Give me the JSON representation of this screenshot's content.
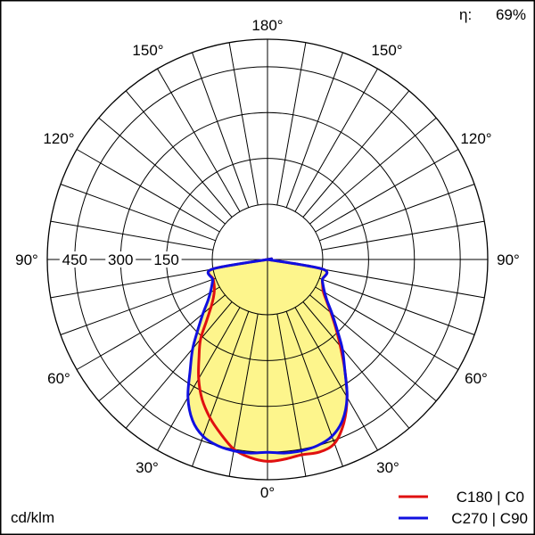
{
  "chart_data": {
    "type": "polar",
    "efficiency": {
      "symbol": "η:",
      "value": "69%"
    },
    "unit_label": "cd/klm",
    "radial_ticks": [
      150,
      300,
      450
    ],
    "radial_tick_labels": [
      "150",
      "300",
      "450"
    ],
    "rmax": 540,
    "angle_labels": {
      "0": "0°",
      "30": "30°",
      "60": "60°",
      "90": "90°",
      "120": "120°",
      "150": "150°",
      "180": "180°"
    },
    "colors": {
      "fill": "#fdf58c",
      "c0": "#e01010",
      "c90": "#1010e0"
    },
    "series": [
      {
        "name": "C180 | C0",
        "color": "#e01010",
        "angles": [
          0,
          5,
          10,
          15,
          20,
          25,
          30,
          35,
          40,
          45,
          50,
          55,
          60,
          65,
          70,
          80,
          90
        ],
        "left_values": [
          480,
          470,
          450,
          410,
          370,
          325,
          270,
          210,
          160,
          100,
          60,
          35,
          20,
          12,
          8,
          3,
          0
        ],
        "right_values": [
          480,
          475,
          468,
          472,
          460,
          410,
          340,
          260,
          190,
          135,
          90,
          55,
          30,
          18,
          10,
          4,
          0
        ]
      },
      {
        "name": "C270 | C90",
        "color": "#1010e0",
        "angles": [
          0,
          5,
          10,
          15,
          20,
          25,
          30,
          35,
          40,
          45,
          50,
          55,
          60,
          65,
          70,
          80,
          90
        ],
        "left_values": [
          450,
          455,
          455,
          450,
          435,
          400,
          340,
          260,
          200,
          140,
          95,
          58,
          35,
          20,
          10,
          4,
          0
        ],
        "right_values": [
          450,
          455,
          455,
          450,
          435,
          400,
          340,
          260,
          200,
          140,
          95,
          58,
          35,
          20,
          10,
          4,
          0
        ]
      }
    ]
  }
}
